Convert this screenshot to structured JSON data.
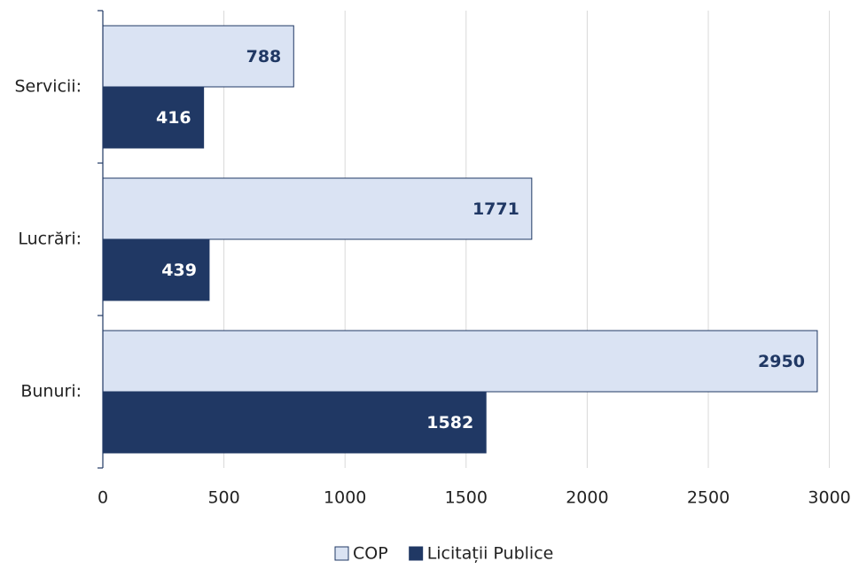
{
  "chart_data": {
    "type": "bar",
    "orientation": "horizontal",
    "categories": [
      "Servicii:",
      "Lucrări:",
      "Bunuri:"
    ],
    "series": [
      {
        "name": "COP",
        "color": "#dae3f3",
        "values": [
          788,
          1771,
          2950
        ]
      },
      {
        "name": "Licitații Publice",
        "color": "#203864",
        "values": [
          416,
          439,
          1582
        ]
      }
    ],
    "xlim": [
      0,
      3000
    ],
    "xticks": [
      0,
      500,
      1000,
      1500,
      2000,
      2500,
      3000
    ],
    "grid": true,
    "legend": "bottom"
  }
}
